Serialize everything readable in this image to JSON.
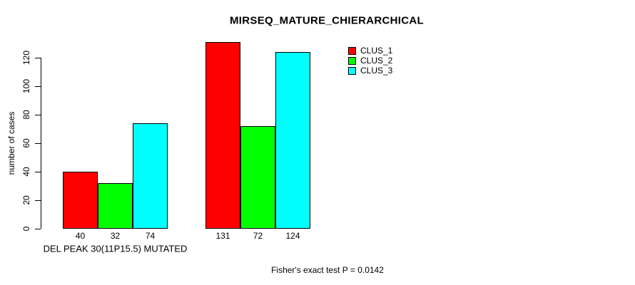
{
  "title": "MIRSEQ_MATURE_CHIERARCHICAL",
  "footer": "Fisher's exact test P = 0.0142",
  "colors": {
    "clus_1": "#FF0000",
    "clus_2": "#00FF00",
    "clus_3": "#00FFFF",
    "axis": "#000000",
    "background": "#FFFFFF"
  },
  "chart_data": {
    "type": "bar",
    "title": "MIRSEQ_MATURE_CHIERARCHICAL",
    "xlabel": "",
    "ylabel": "number of cases",
    "categories": [
      "DEL PEAK 30(11P15.5) MUTATED",
      ""
    ],
    "series": [
      {
        "name": "CLUS_1",
        "color": "#FF0000",
        "values": [
          40,
          131
        ]
      },
      {
        "name": "CLUS_2",
        "color": "#00FF00",
        "values": [
          32,
          72
        ]
      },
      {
        "name": "CLUS_3",
        "color": "#00FFFF",
        "values": [
          74,
          124
        ]
      }
    ],
    "bar_value_labels": [
      [
        40,
        32,
        74
      ],
      [
        131,
        72,
        124
      ]
    ],
    "yticks": [
      0,
      20,
      40,
      60,
      80,
      100,
      120
    ],
    "ylim": [
      0,
      131
    ],
    "grid": false,
    "legend_position": "top-right",
    "annotation": "Fisher's exact test P = 0.0142"
  }
}
